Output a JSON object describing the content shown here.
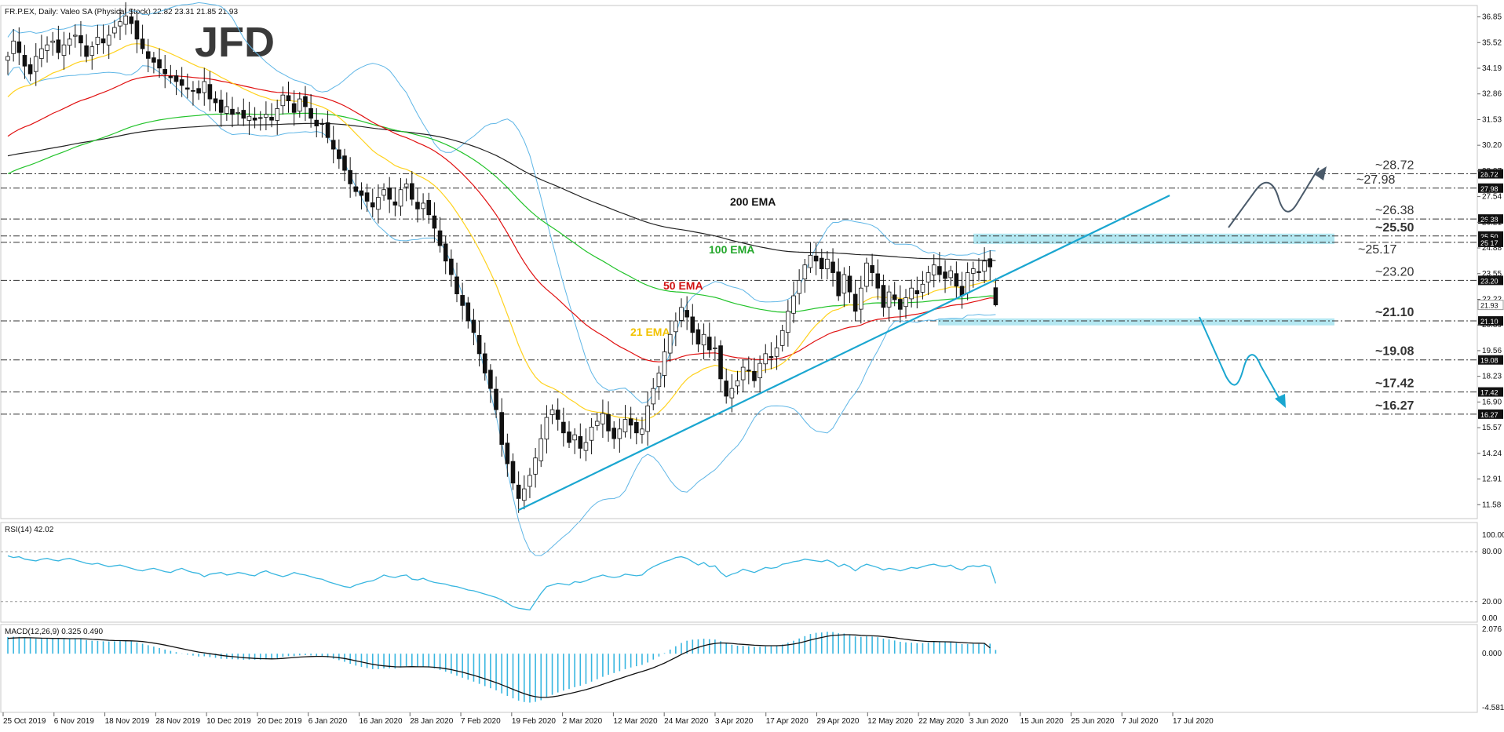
{
  "header": {
    "symbol_line": "FR.P.EX, Daily:  Valeo SA (Physical Stock)  22.82 23.31 21.85 21.93"
  },
  "logo_text": "JFD",
  "colors": {
    "ema21": "#ffd21e",
    "ema50": "#e01010",
    "ema100": "#22c32a",
    "ema200": "#222222",
    "bollinger": "#5fb6e6",
    "trend": "#1aa6d0",
    "zone": "#a6e3ee",
    "bull_fill": "#ffffff",
    "bear_fill": "#111111",
    "rsi_line": "#38b6e0",
    "macd_hist": "#38b6e0",
    "macd_signal": "#111111",
    "arrow_up": "#4a5a6a",
    "arrow_down": "#1aa6d0"
  },
  "chart_data": [
    {
      "type": "candlestick",
      "title": "FR.P.EX, Daily:  Valeo SA (Physical Stock)  22.82 23.31 21.85 21.93",
      "y_ticks": [
        "36.85",
        "35.52",
        "34.19",
        "32.86",
        "31.53",
        "30.20",
        "28.87",
        "27.54",
        "26.21",
        "24.88",
        "23.55",
        "22.22",
        "20.89",
        "19.56",
        "18.23",
        "16.90",
        "15.57",
        "14.24",
        "12.91",
        "11.58"
      ],
      "ylim": [
        10.9,
        37.4
      ],
      "x_ticks": [
        "25 Oct 2019",
        "6 Nov 2019",
        "18 Nov 2019",
        "28 Nov 2019",
        "10 Dec 2019",
        "20 Dec 2019",
        "6 Jan 2020",
        "16 Jan 2020",
        "28 Jan 2020",
        "7 Feb 2020",
        "19 Feb 2020",
        "2 Mar 2020",
        "12 Mar 2020",
        "24 Mar 2020",
        "3 Apr 2020",
        "17 Apr 2020",
        "29 Apr 2020",
        "12 May 2020",
        "22 May 2020",
        "3 Jun 2020",
        "15 Jun 2020",
        "25 Jun 2020",
        "7 Jul 2020",
        "17 Jul 2020"
      ],
      "last_close": 21.93,
      "close_series": [
        34.8,
        35.6,
        35.0,
        34.3,
        33.9,
        34.8,
        35.2,
        35.4,
        35.6,
        35.0,
        35.4,
        35.7,
        35.9,
        35.5,
        34.8,
        35.3,
        35.8,
        35.5,
        35.9,
        36.3,
        36.6,
        36.9,
        36.5,
        35.7,
        35.2,
        34.7,
        34.5,
        34.2,
        33.9,
        33.7,
        33.5,
        33.3,
        33.1,
        33.0,
        32.9,
        33.5,
        32.6,
        32.4,
        31.9,
        32.2,
        31.8,
        31.9,
        31.6,
        31.7,
        31.5,
        31.6,
        31.8,
        31.5,
        32.1,
        32.8,
        32.5,
        31.9,
        32.6,
        32.2,
        31.6,
        31.2,
        31.3,
        30.6,
        30.0,
        29.5,
        28.9,
        28.2,
        27.8,
        27.6,
        27.3,
        27.0,
        27.5,
        27.9,
        27.4,
        27.1,
        27.9,
        28.2,
        27.4,
        26.9,
        27.2,
        26.6,
        25.9,
        25.0,
        24.2,
        23.5,
        22.5,
        21.9,
        21.1,
        20.5,
        19.4,
        18.4,
        17.6,
        16.5,
        14.7,
        13.7,
        12.7,
        11.9,
        12.4,
        13.1,
        14.0,
        15.0,
        16.1,
        16.5,
        16.0,
        15.3,
        14.8,
        15.2,
        14.5,
        14.8,
        15.6,
        15.9,
        16.3,
        15.4,
        15.0,
        15.5,
        16.0,
        15.7,
        15.3,
        15.5,
        16.7,
        17.6,
        18.4,
        19.5,
        20.4,
        21.1,
        21.8,
        21.3,
        20.5,
        19.9,
        20.4,
        19.6,
        19.7,
        18.1,
        17.2,
        17.6,
        18.0,
        18.7,
        18.5,
        18.0,
        18.9,
        19.4,
        19.2,
        19.7,
        20.6,
        21.6,
        22.4,
        23.2,
        24.0,
        24.5,
        24.2,
        23.8,
        24.3,
        23.6,
        22.4,
        23.5,
        22.6,
        21.6,
        22.8,
        24.1,
        23.6,
        22.8,
        21.8,
        22.6,
        22.2,
        21.7,
        22.3,
        22.8,
        22.5,
        23.0,
        23.6,
        24.0,
        23.5,
        23.3,
        23.7,
        22.9,
        22.4,
        23.6,
        23.8,
        23.6,
        24.2,
        23.9,
        21.93
      ]
    },
    {
      "type": "line",
      "title": "RSI(14) 42.02",
      "y_ticks": [
        "100.00",
        "80.00",
        "20.00",
        "0.00"
      ],
      "levels": [
        80,
        20
      ],
      "ylim": [
        0,
        100
      ],
      "last_value": 42.02,
      "series": [
        {
          "name": "RSI(14)",
          "values": [
            75,
            73,
            74,
            71,
            70,
            69,
            71,
            72,
            70,
            69,
            71,
            72,
            70,
            68,
            66,
            65,
            66,
            64,
            62,
            63,
            64,
            62,
            60,
            58,
            57,
            59,
            60,
            58,
            56,
            55,
            58,
            60,
            57,
            55,
            54,
            50,
            53,
            54,
            55,
            52,
            53,
            55,
            54,
            52,
            51,
            55,
            57,
            54,
            52,
            50,
            52,
            55,
            53,
            52,
            50,
            48,
            47,
            44,
            42,
            40,
            38,
            37,
            40,
            42,
            44,
            45,
            48,
            52,
            50,
            49,
            51,
            52,
            47,
            46,
            48,
            45,
            43,
            42,
            41,
            39,
            38,
            36,
            34,
            33,
            31,
            29,
            27,
            25,
            22,
            18,
            14,
            12,
            11,
            10,
            20,
            30,
            38,
            40,
            42,
            41,
            40,
            44,
            43,
            45,
            48,
            50,
            52,
            50,
            49,
            50,
            53,
            52,
            51,
            52,
            58,
            62,
            65,
            68,
            70,
            73,
            74,
            72,
            68,
            64,
            67,
            62,
            63,
            55,
            50,
            53,
            55,
            59,
            57,
            55,
            58,
            61,
            60,
            61,
            65,
            66,
            68,
            69,
            71,
            70,
            69,
            68,
            70,
            67,
            62,
            65,
            62,
            57,
            62,
            65,
            63,
            61,
            58,
            60,
            59,
            57,
            59,
            61,
            60,
            62,
            64,
            65,
            63,
            62,
            64,
            60,
            58,
            62,
            63,
            62,
            64,
            62,
            42
          ]
        }
      ]
    },
    {
      "type": "bar",
      "title": "MACD(12,26,9) 0.325 0.490",
      "y_ticks": [
        "2.076",
        "0.000",
        "-4.581"
      ],
      "ylim": [
        -4.581,
        2.076
      ],
      "last_values": [
        0.325,
        0.49
      ],
      "series": [
        {
          "name": "MACD(12,26,9)",
          "values": [
            1.42,
            1.44,
            1.43,
            1.38,
            1.31,
            1.28,
            1.27,
            1.27,
            1.28,
            1.25,
            1.24,
            1.25,
            1.27,
            1.25,
            1.16,
            1.1,
            1.09,
            1.05,
            1.04,
            1.05,
            1.07,
            1.09,
            1.07,
            0.97,
            0.85,
            0.72,
            0.6,
            0.48,
            0.35,
            0.24,
            0.13,
            0.02,
            -0.08,
            -0.16,
            -0.24,
            -0.22,
            -0.29,
            -0.35,
            -0.43,
            -0.43,
            -0.47,
            -0.48,
            -0.51,
            -0.5,
            -0.51,
            -0.5,
            -0.47,
            -0.47,
            -0.39,
            -0.27,
            -0.21,
            -0.21,
            -0.14,
            -0.12,
            -0.15,
            -0.21,
            -0.24,
            -0.32,
            -0.43,
            -0.55,
            -0.69,
            -0.86,
            -1.01,
            -1.12,
            -1.22,
            -1.31,
            -1.31,
            -1.25,
            -1.24,
            -1.26,
            -1.17,
            -1.07,
            -1.06,
            -1.11,
            -1.11,
            -1.16,
            -1.25,
            -1.38,
            -1.53,
            -1.69,
            -1.87,
            -2.04,
            -2.21,
            -2.37,
            -2.56,
            -2.75,
            -2.93,
            -3.11,
            -3.37,
            -3.58,
            -3.79,
            -3.99,
            -4.1,
            -4.15,
            -4.09,
            -3.95,
            -3.73,
            -3.49,
            -3.29,
            -3.13,
            -3.0,
            -2.84,
            -2.72,
            -2.57,
            -2.37,
            -2.17,
            -1.96,
            -1.79,
            -1.64,
            -1.48,
            -1.31,
            -1.17,
            -1.06,
            -0.95,
            -0.75,
            -0.5,
            -0.24,
            0.05,
            0.35,
            0.63,
            0.91,
            1.1,
            1.19,
            1.22,
            1.27,
            1.23,
            1.2,
            1.06,
            0.88,
            0.76,
            0.68,
            0.67,
            0.64,
            0.58,
            0.59,
            0.62,
            0.63,
            0.68,
            0.78,
            0.93,
            1.1,
            1.29,
            1.49,
            1.67,
            1.77,
            1.8,
            1.86,
            1.84,
            1.73,
            1.71,
            1.63,
            1.47,
            1.43,
            1.48,
            1.46,
            1.4,
            1.28,
            1.21,
            1.12,
            1.01,
            0.96,
            0.94,
            0.89,
            0.9,
            0.94,
            0.99,
            0.99,
            0.98,
            0.98,
            0.91,
            0.82,
            0.83,
            0.84,
            0.83,
            0.86,
            0.85,
            0.32
          ]
        },
        {
          "name": "Signal",
          "values": [
            1.3,
            1.33,
            1.35,
            1.36,
            1.35,
            1.34,
            1.32,
            1.31,
            1.3,
            1.3,
            1.29,
            1.28,
            1.28,
            1.28,
            1.25,
            1.22,
            1.2,
            1.17,
            1.14,
            1.12,
            1.11,
            1.1,
            1.09,
            1.07,
            1.03,
            0.97,
            0.9,
            0.82,
            0.73,
            0.63,
            0.53,
            0.43,
            0.33,
            0.23,
            0.14,
            0.07,
            0.0,
            -0.07,
            -0.14,
            -0.2,
            -0.25,
            -0.29,
            -0.34,
            -0.37,
            -0.4,
            -0.42,
            -0.43,
            -0.44,
            -0.43,
            -0.4,
            -0.36,
            -0.33,
            -0.29,
            -0.26,
            -0.24,
            -0.23,
            -0.23,
            -0.25,
            -0.29,
            -0.34,
            -0.41,
            -0.5,
            -0.6,
            -0.7,
            -0.8,
            -0.9,
            -0.98,
            -1.03,
            -1.07,
            -1.11,
            -1.12,
            -1.11,
            -1.1,
            -1.11,
            -1.11,
            -1.12,
            -1.15,
            -1.2,
            -1.27,
            -1.35,
            -1.46,
            -1.57,
            -1.7,
            -1.83,
            -1.98,
            -2.13,
            -2.29,
            -2.46,
            -2.64,
            -2.83,
            -3.02,
            -3.21,
            -3.39,
            -3.54,
            -3.65,
            -3.71,
            -3.71,
            -3.66,
            -3.59,
            -3.49,
            -3.39,
            -3.28,
            -3.17,
            -3.05,
            -2.91,
            -2.76,
            -2.6,
            -2.43,
            -2.28,
            -2.12,
            -1.96,
            -1.8,
            -1.65,
            -1.51,
            -1.36,
            -1.19,
            -1.0,
            -0.79,
            -0.56,
            -0.32,
            -0.07,
            0.16,
            0.37,
            0.54,
            0.68,
            0.79,
            0.87,
            0.91,
            0.9,
            0.87,
            0.82,
            0.79,
            0.76,
            0.72,
            0.7,
            0.68,
            0.68,
            0.68,
            0.7,
            0.75,
            0.82,
            0.91,
            1.03,
            1.16,
            1.28,
            1.38,
            1.48,
            1.55,
            1.58,
            1.61,
            1.61,
            1.59,
            1.56,
            1.54,
            1.52,
            1.5,
            1.45,
            1.4,
            1.35,
            1.28,
            1.22,
            1.16,
            1.11,
            1.07,
            1.04,
            1.03,
            1.02,
            1.01,
            1.0,
            0.98,
            0.95,
            0.92,
            0.9,
            0.89,
            0.88,
            0.49
          ]
        }
      ]
    }
  ],
  "indicators": {
    "ema21_label": "21 EMA",
    "ema50_label": "50 EMA",
    "ema100_label": "100 EMA",
    "ema200_label": "200 EMA"
  },
  "levels": [
    {
      "value": 28.72,
      "label": "~28.72",
      "tag": "28.72",
      "highlight": false
    },
    {
      "value": 27.98,
      "label": "~27.98",
      "tag": "27.98",
      "highlight": false
    },
    {
      "value": 26.38,
      "label": "~26.38",
      "tag": "26.38",
      "highlight": false
    },
    {
      "value": 25.5,
      "label": "~25.50",
      "tag": "25.50",
      "highlight": true
    },
    {
      "value": 25.17,
      "label": "~25.17",
      "tag": "25.17",
      "highlight": false
    },
    {
      "value": 23.2,
      "label": "~23.20",
      "tag": "23.20",
      "highlight": false
    },
    {
      "value": 21.1,
      "label": "~21.10",
      "tag": "21.10",
      "highlight": true
    },
    {
      "value": 19.08,
      "label": "~19.08",
      "tag": "19.08",
      "highlight": true
    },
    {
      "value": 17.42,
      "label": "~17.42",
      "tag": "17.42",
      "highlight": true
    },
    {
      "value": 16.27,
      "label": "~16.27",
      "tag": "16.27",
      "highlight": true
    }
  ],
  "zones": [
    {
      "from": 25.17,
      "to": 25.5
    },
    {
      "from": 20.95,
      "to": 21.15
    }
  ],
  "trendline": {
    "from_index": 91,
    "from_value": 11.3,
    "to_index": 207,
    "to_value": 27.6
  }
}
